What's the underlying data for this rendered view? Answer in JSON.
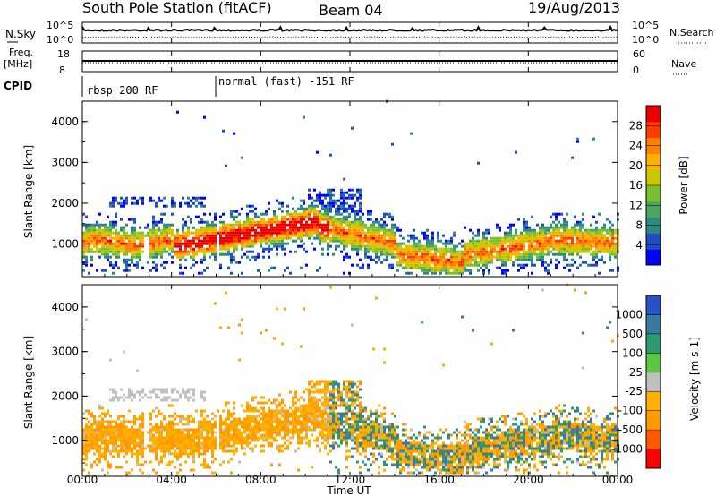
{
  "header": {
    "station": "South Pole Station (fitACF)",
    "beam": "Beam 04",
    "date": "19/Aug/2013"
  },
  "top_panels": {
    "nsky_label": "N.Sky",
    "nsky_ticks": [
      "10^5",
      "10^0"
    ],
    "nsearch_label": "N.Search",
    "nsearch_ticks": [
      "10^5",
      "10^0"
    ],
    "freq_label": "Freq.",
    "freq_unit": "[MHz]",
    "freq_ticks": [
      "18",
      "8"
    ],
    "nave_label": "Nave",
    "nave_ticks": [
      "60",
      "0"
    ],
    "cpid_label": "CPID",
    "cpid_segments": [
      {
        "label": "rbsp 200 RF",
        "start_hour": 0
      },
      {
        "label": "normal (fast) -151 RF",
        "start_hour": 6
      }
    ]
  },
  "chart_data": [
    {
      "type": "heatmap",
      "name": "power",
      "ylabel": "Slant Range [km]",
      "yticks": [
        "1000",
        "2000",
        "3000",
        "4000"
      ],
      "ylim": [
        200,
        4500
      ],
      "xlim": [
        0,
        24
      ],
      "colorbar": {
        "label": "Power [dB]",
        "ticks": [
          "4",
          "8",
          "12",
          "16",
          "20",
          "24",
          "28"
        ],
        "range": [
          0,
          32
        ],
        "colors": [
          "#0000ff",
          "#1f4fbf",
          "#2e8a80",
          "#4aa65e",
          "#78c030",
          "#c8c800",
          "#ffb000",
          "#ff7f00",
          "#ff3c00",
          "#e80000"
        ]
      }
    },
    {
      "type": "heatmap",
      "name": "velocity",
      "ylabel": "Slant Range [km]",
      "yticks": [
        "1000",
        "2000",
        "3000",
        "4000"
      ],
      "ylim": [
        200,
        4500
      ],
      "xlim": [
        0,
        24
      ],
      "colorbar": {
        "label": "Velocity [m s-1]",
        "ticks": [
          "-1000",
          "-500",
          "-100",
          "-25",
          "25",
          "100",
          "500",
          "1000"
        ],
        "colors": [
          "#ff0000",
          "#ff5a00",
          "#ff9a00",
          "#ffb000",
          "#c0c0c0",
          "#5ac83c",
          "#2e9a70",
          "#3a7aa0",
          "#2a52c8"
        ]
      }
    }
  ],
  "xaxis": {
    "ticks": [
      "00:00",
      "04:00",
      "08:00",
      "12:00",
      "16:00",
      "20:00",
      "00:00"
    ],
    "label": "Time UT"
  }
}
